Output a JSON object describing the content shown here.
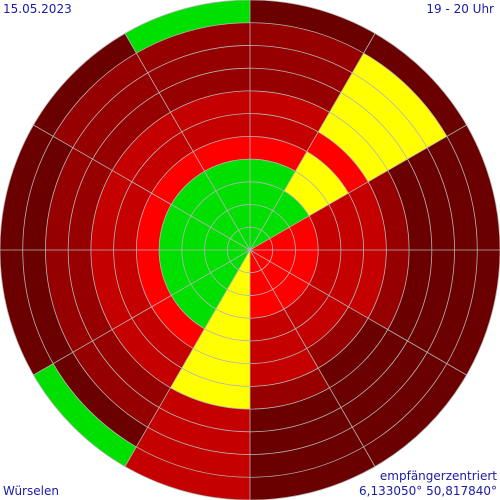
{
  "header": {
    "date": "15.05.2023",
    "time_range": "19 - 20 Uhr"
  },
  "footer": {
    "location": "Würselen",
    "mode": "empfängerzentriert",
    "coordinates": "6,133050° 50,817840°"
  },
  "colors": {
    "background": "#ffffff",
    "grid": "#b4b4b4",
    "levels": [
      "#00e000",
      "#ffff00",
      "#ff0000",
      "#c40000",
      "#960000",
      "#6a0000"
    ]
  },
  "chart_data": {
    "type": "polar-sector",
    "sector_count": 12,
    "ring_count": 11,
    "sector_order": "clockwise from north",
    "levels": [
      "level-0-green",
      "level-1-yellow",
      "level-2-red",
      "level-3-darkred",
      "level-4-darker",
      "level-5-darkest"
    ],
    "sectors": [
      {
        "sector": "0-30",
        "rings": [
          0,
          0,
          0,
          0,
          2,
          3,
          3,
          4,
          4,
          4,
          5
        ]
      },
      {
        "sector": "30-60",
        "rings": [
          0,
          0,
          0,
          1,
          1,
          2,
          1,
          1,
          1,
          1,
          5
        ]
      },
      {
        "sector": "60-90",
        "rings": [
          2,
          2,
          2,
          3,
          3,
          3,
          4,
          5,
          5,
          5,
          5
        ]
      },
      {
        "sector": "90-120",
        "rings": [
          2,
          2,
          2,
          3,
          3,
          3,
          4,
          5,
          5,
          5,
          5
        ]
      },
      {
        "sector": "120-150",
        "rings": [
          2,
          2,
          2,
          3,
          3,
          4,
          5,
          5,
          5,
          5,
          5
        ]
      },
      {
        "sector": "150-180",
        "rings": [
          2,
          2,
          2,
          3,
          3,
          3,
          4,
          5,
          5,
          5,
          5
        ]
      },
      {
        "sector": "180-210",
        "rings": [
          1,
          1,
          1,
          1,
          1,
          1,
          1,
          3,
          3,
          3,
          3
        ]
      },
      {
        "sector": "210-240",
        "rings": [
          0,
          0,
          0,
          0,
          2,
          3,
          3,
          4,
          4,
          5,
          0
        ]
      },
      {
        "sector": "240-270",
        "rings": [
          0,
          0,
          0,
          0,
          2,
          3,
          3,
          4,
          4,
          5,
          5
        ]
      },
      {
        "sector": "270-300",
        "rings": [
          0,
          0,
          0,
          0,
          2,
          3,
          3,
          4,
          4,
          5,
          5
        ]
      },
      {
        "sector": "300-330",
        "rings": [
          0,
          0,
          0,
          0,
          2,
          3,
          3,
          4,
          4,
          4,
          5
        ]
      },
      {
        "sector": "330-360",
        "rings": [
          0,
          0,
          0,
          0,
          2,
          3,
          3,
          4,
          4,
          4,
          0
        ]
      }
    ]
  }
}
